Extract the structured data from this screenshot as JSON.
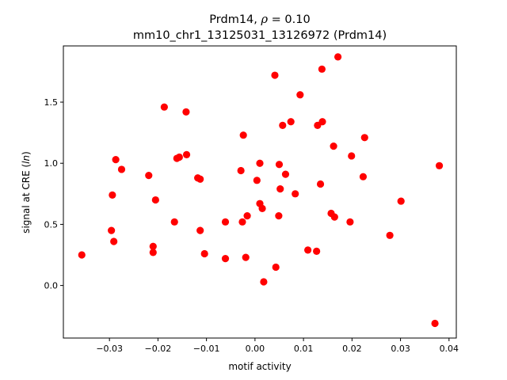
{
  "chart_data": {
    "type": "scatter",
    "title_line1_prefix": "Prdm14, ",
    "title_rho_symbol": "ρ",
    "title_rho_suffix": " = 0.10",
    "title_line2": "mm10_chr1_13125031_13126972 (Prdm14)",
    "xlabel": "motif activity",
    "ylabel_prefix": "signal at CRE (",
    "ylabel_italic": "ln",
    "ylabel_suffix": ")",
    "xlim": [
      -0.0395,
      0.0415
    ],
    "ylim": [
      -0.43,
      1.96
    ],
    "xticks": [
      -0.03,
      -0.02,
      -0.01,
      0.0,
      0.01,
      0.02,
      0.03,
      0.04
    ],
    "xtick_labels": [
      "−0.03",
      "−0.02",
      "−0.01",
      "0.00",
      "0.01",
      "0.02",
      "0.03",
      "0.04"
    ],
    "yticks": [
      0.0,
      0.5,
      1.0,
      1.5
    ],
    "ytick_labels": [
      "0.0",
      "0.5",
      "1.0",
      "1.5"
    ],
    "grid": false,
    "marker_color": "#ff0000",
    "points": [
      {
        "x": -0.0357,
        "y": 0.25
      },
      {
        "x": -0.0296,
        "y": 0.45
      },
      {
        "x": -0.0294,
        "y": 0.74
      },
      {
        "x": -0.0291,
        "y": 0.36
      },
      {
        "x": -0.0287,
        "y": 1.03
      },
      {
        "x": -0.0275,
        "y": 0.95
      },
      {
        "x": -0.0219,
        "y": 0.9
      },
      {
        "x": -0.021,
        "y": 0.32
      },
      {
        "x": -0.021,
        "y": 0.27
      },
      {
        "x": -0.0205,
        "y": 0.7
      },
      {
        "x": -0.0187,
        "y": 1.46
      },
      {
        "x": -0.0166,
        "y": 0.52
      },
      {
        "x": -0.0161,
        "y": 1.04
      },
      {
        "x": -0.0156,
        "y": 1.05
      },
      {
        "x": -0.0142,
        "y": 1.42
      },
      {
        "x": -0.0141,
        "y": 1.07
      },
      {
        "x": -0.0118,
        "y": 0.88
      },
      {
        "x": -0.0113,
        "y": 0.45
      },
      {
        "x": -0.0113,
        "y": 0.87
      },
      {
        "x": -0.0104,
        "y": 0.26
      },
      {
        "x": -0.0061,
        "y": 0.52
      },
      {
        "x": -0.0061,
        "y": 0.22
      },
      {
        "x": -0.0029,
        "y": 0.94
      },
      {
        "x": -0.0026,
        "y": 0.52
      },
      {
        "x": -0.0024,
        "y": 1.23
      },
      {
        "x": -0.0019,
        "y": 0.23
      },
      {
        "x": -0.0016,
        "y": 0.57
      },
      {
        "x": 0.0004,
        "y": 0.86
      },
      {
        "x": 0.001,
        "y": 1.0
      },
      {
        "x": 0.001,
        "y": 0.67
      },
      {
        "x": 0.0015,
        "y": 0.63
      },
      {
        "x": 0.0018,
        "y": 0.03
      },
      {
        "x": 0.0041,
        "y": 1.72
      },
      {
        "x": 0.0043,
        "y": 0.15
      },
      {
        "x": 0.0049,
        "y": 0.57
      },
      {
        "x": 0.005,
        "y": 0.99
      },
      {
        "x": 0.0052,
        "y": 0.79
      },
      {
        "x": 0.0057,
        "y": 1.31
      },
      {
        "x": 0.0063,
        "y": 0.91
      },
      {
        "x": 0.0074,
        "y": 1.34
      },
      {
        "x": 0.0083,
        "y": 0.75
      },
      {
        "x": 0.0093,
        "y": 1.56
      },
      {
        "x": 0.0109,
        "y": 0.29
      },
      {
        "x": 0.0127,
        "y": 0.28
      },
      {
        "x": 0.0129,
        "y": 1.31
      },
      {
        "x": 0.0135,
        "y": 0.83
      },
      {
        "x": 0.0138,
        "y": 1.77
      },
      {
        "x": 0.0139,
        "y": 1.34
      },
      {
        "x": 0.0157,
        "y": 0.59
      },
      {
        "x": 0.0162,
        "y": 1.14
      },
      {
        "x": 0.0164,
        "y": 0.56
      },
      {
        "x": 0.0171,
        "y": 1.87
      },
      {
        "x": 0.0196,
        "y": 0.52
      },
      {
        "x": 0.0199,
        "y": 1.06
      },
      {
        "x": 0.0223,
        "y": 0.89
      },
      {
        "x": 0.0226,
        "y": 1.21
      },
      {
        "x": 0.0278,
        "y": 0.41
      },
      {
        "x": 0.0301,
        "y": 0.69
      },
      {
        "x": 0.0371,
        "y": -0.31
      },
      {
        "x": 0.038,
        "y": 0.98
      }
    ]
  }
}
